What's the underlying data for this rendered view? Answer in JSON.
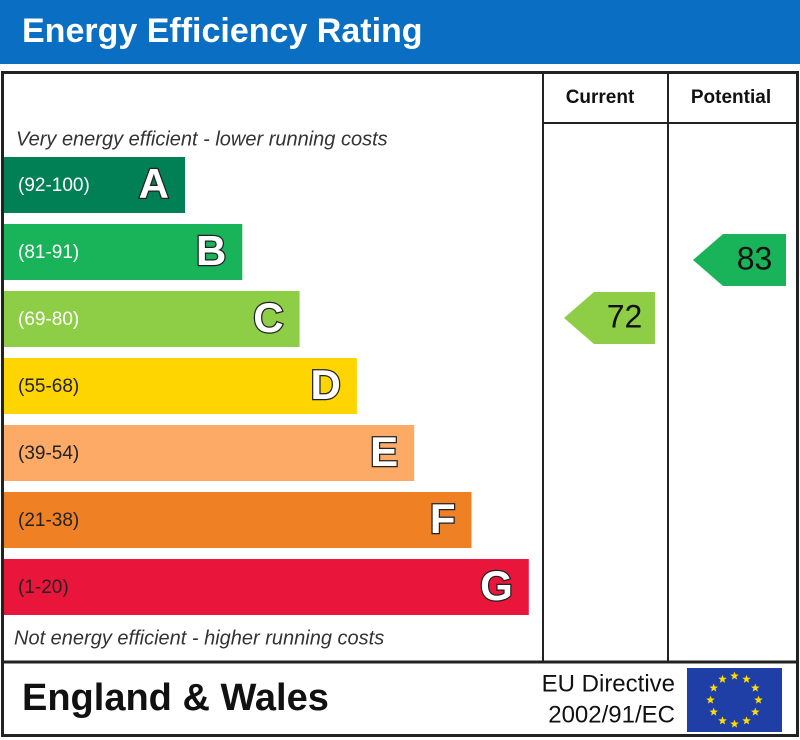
{
  "header": {
    "title": "Energy Efficiency Rating"
  },
  "columns": {
    "current": "Current",
    "potential": "Potential"
  },
  "top_note": "Very energy efficient - lower running costs",
  "bottom_note": "Not energy efficient - higher running costs",
  "bands": [
    {
      "range": "(92-100)",
      "letter": "A",
      "color": "#008054"
    },
    {
      "range": "(81-91)",
      "letter": "B",
      "color": "#19b459"
    },
    {
      "range": "(69-80)",
      "letter": "C",
      "color": "#8dce46"
    },
    {
      "range": "(55-68)",
      "letter": "D",
      "color": "#ffd500"
    },
    {
      "range": "(39-54)",
      "letter": "E",
      "color": "#fcaa65"
    },
    {
      "range": "(21-38)",
      "letter": "F",
      "color": "#ef8023"
    },
    {
      "range": "(1-20)",
      "letter": "G",
      "color": "#e9153b"
    }
  ],
  "ratings": {
    "current": 72,
    "potential": 83
  },
  "footer": {
    "region": "England & Wales",
    "directive_line1": "EU Directive",
    "directive_line2": "2002/91/EC"
  }
}
